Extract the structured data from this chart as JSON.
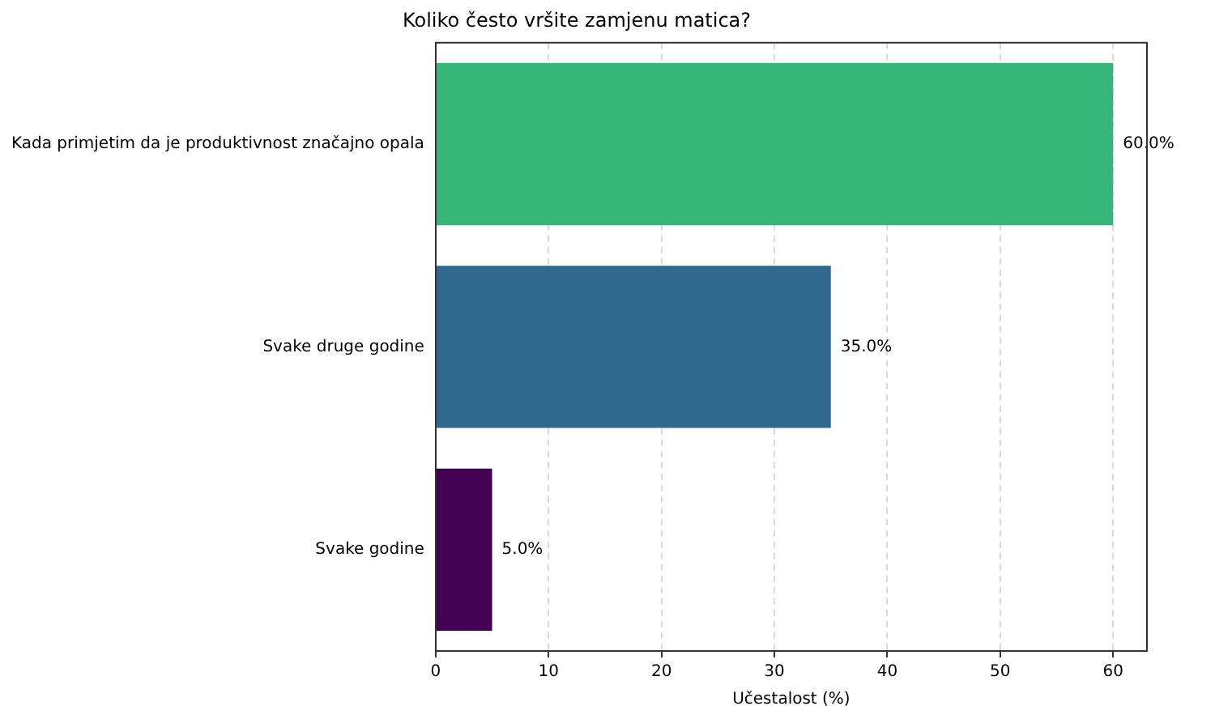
{
  "chart_data": {
    "type": "bar",
    "orientation": "horizontal",
    "title": "Koliko često vršite zamjenu matica?",
    "xlabel": "Učestalost (%)",
    "categories": [
      "Kada primjetim da je produktivnost značajno opala",
      "Svake druge godine",
      "Svake godine"
    ],
    "values": [
      60,
      35,
      5
    ],
    "colors": [
      "#35b779",
      "#31688e",
      "#440154"
    ],
    "value_labels": [
      "60.0%",
      "35.0%",
      "5.0%"
    ],
    "xlim": [
      0,
      63
    ],
    "xticks": [
      0,
      10,
      20,
      30,
      40,
      50,
      60
    ],
    "grid": "x"
  }
}
